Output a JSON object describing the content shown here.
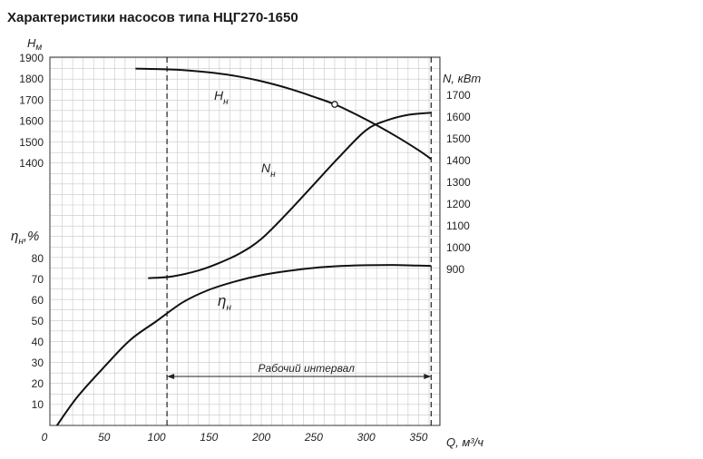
{
  "page": {
    "title": "Характеристики насосов типа НЦГ270-1650"
  },
  "chart_data": {
    "type": "line",
    "title": "Характеристики насосов типа НЦГ270-1650",
    "xlabel": "Q, м³/ч",
    "x_ticks": [
      0,
      50,
      100,
      150,
      200,
      250,
      300,
      350
    ],
    "xlim": [
      0,
      370
    ],
    "axes": {
      "head": {
        "label_main": "H",
        "label_sub": "м",
        "ticks": [
          1400,
          1500,
          1600,
          1700,
          1800,
          1900
        ],
        "range": [
          1350,
          1900
        ]
      },
      "power": {
        "label": "N, кВт",
        "ticks": [
          900,
          1000,
          1100,
          1200,
          1300,
          1400,
          1500,
          1600,
          1700
        ],
        "range": [
          900,
          1700
        ]
      },
      "efficiency": {
        "label_main": "η",
        "label_sub": "н",
        "label_suffix": ",%",
        "ticks": [
          0,
          10,
          20,
          30,
          40,
          50,
          60,
          70,
          80
        ],
        "range": [
          0,
          80
        ]
      }
    },
    "series": [
      {
        "name": "Hн",
        "label_main": "H",
        "label_sub": "н",
        "axis": "head",
        "x": [
          80,
          100,
          125,
          150,
          175,
          200,
          225,
          250,
          270,
          290,
          310,
          330,
          350,
          362
        ],
        "y": [
          1850,
          1848,
          1843,
          1832,
          1815,
          1790,
          1757,
          1716,
          1680,
          1633,
          1581,
          1524,
          1462,
          1420
        ]
      },
      {
        "name": "Nн",
        "label_main": "N",
        "label_sub": "н",
        "axis": "power",
        "x": [
          92,
          115,
          140,
          160,
          180,
          200,
          225,
          250,
          275,
          300,
          320,
          340,
          362
        ],
        "y": [
          860,
          868,
          895,
          930,
          975,
          1040,
          1160,
          1290,
          1420,
          1540,
          1585,
          1610,
          1620
        ]
      },
      {
        "name": "ηн",
        "label_main": "η",
        "label_sub": "н",
        "axis": "efficiency",
        "x": [
          5,
          25,
          50,
          75,
          100,
          125,
          150,
          175,
          200,
          225,
          250,
          275,
          300,
          325,
          350,
          362
        ],
        "y": [
          0,
          14,
          28,
          41,
          50,
          59,
          65,
          69,
          72,
          74,
          75.5,
          76.4,
          76.8,
          76.9,
          76.6,
          76.5
        ]
      }
    ],
    "operating_range": {
      "label": "Рабочий интервал",
      "q_min": 110,
      "q_max": 362
    },
    "marker": {
      "x": 270,
      "y": 1680,
      "axis": "head"
    }
  }
}
